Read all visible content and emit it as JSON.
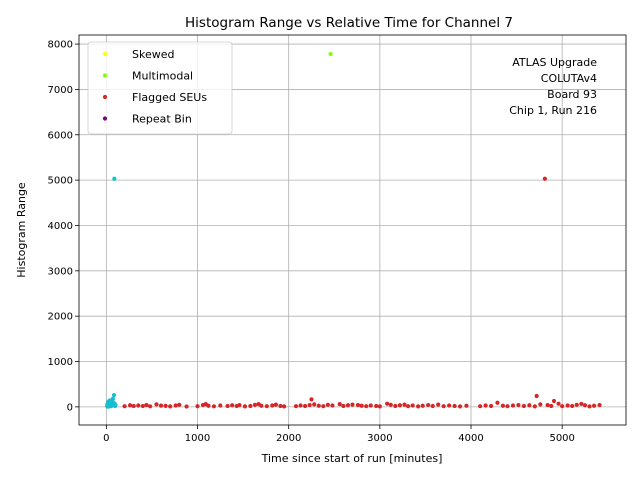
{
  "chart_data": {
    "type": "scatter",
    "title": "Histogram Range vs Relative Time for Channel 7",
    "xlabel": "Time since start of run [minutes]",
    "ylabel": "Histogram Range",
    "xlim": [
      -300,
      5700
    ],
    "ylim": [
      -400,
      8200
    ],
    "xticks": [
      0,
      1000,
      2000,
      3000,
      4000,
      5000
    ],
    "yticks": [
      0,
      1000,
      2000,
      3000,
      4000,
      5000,
      6000,
      7000,
      8000
    ],
    "grid": true,
    "legend_position": "top-left",
    "annotation": [
      "ATLAS Upgrade",
      "COLUTAv4",
      "Board 93",
      "Chip 1, Run 216"
    ],
    "annotation_position": "top-right",
    "series": [
      {
        "name": "Skewed",
        "color": "#ffff00",
        "points": []
      },
      {
        "name": "Multimodal",
        "color": "#7fff00",
        "points": [
          [
            2460,
            7780
          ]
        ]
      },
      {
        "name": "Flagged SEUs",
        "color": "#d62728",
        "points": [
          [
            200,
            15
          ],
          [
            260,
            35
          ],
          [
            300,
            20
          ],
          [
            350,
            30
          ],
          [
            400,
            18
          ],
          [
            440,
            42
          ],
          [
            480,
            12
          ],
          [
            550,
            55
          ],
          [
            600,
            28
          ],
          [
            650,
            22
          ],
          [
            700,
            10
          ],
          [
            760,
            30
          ],
          [
            800,
            45
          ],
          [
            880,
            8
          ],
          [
            1000,
            15
          ],
          [
            1060,
            40
          ],
          [
            1090,
            60
          ],
          [
            1120,
            25
          ],
          [
            1180,
            12
          ],
          [
            1250,
            30
          ],
          [
            1330,
            20
          ],
          [
            1380,
            35
          ],
          [
            1430,
            18
          ],
          [
            1460,
            40
          ],
          [
            1520,
            10
          ],
          [
            1580,
            20
          ],
          [
            1630,
            45
          ],
          [
            1670,
            60
          ],
          [
            1700,
            25
          ],
          [
            1760,
            15
          ],
          [
            1820,
            30
          ],
          [
            1860,
            50
          ],
          [
            1910,
            20
          ],
          [
            1950,
            10
          ],
          [
            2080,
            15
          ],
          [
            2130,
            30
          ],
          [
            2180,
            20
          ],
          [
            2230,
            40
          ],
          [
            2250,
            165
          ],
          [
            2280,
            55
          ],
          [
            2330,
            25
          ],
          [
            2380,
            15
          ],
          [
            2430,
            45
          ],
          [
            2480,
            30
          ],
          [
            2560,
            60
          ],
          [
            2600,
            20
          ],
          [
            2650,
            35
          ],
          [
            2700,
            50
          ],
          [
            2760,
            40
          ],
          [
            2800,
            25
          ],
          [
            2850,
            15
          ],
          [
            2900,
            30
          ],
          [
            2960,
            20
          ],
          [
            3000,
            10
          ],
          [
            3080,
            70
          ],
          [
            3120,
            45
          ],
          [
            3170,
            20
          ],
          [
            3220,
            35
          ],
          [
            3270,
            50
          ],
          [
            3310,
            15
          ],
          [
            3360,
            30
          ],
          [
            3420,
            10
          ],
          [
            3470,
            25
          ],
          [
            3530,
            40
          ],
          [
            3580,
            20
          ],
          [
            3640,
            50
          ],
          [
            3700,
            15
          ],
          [
            3760,
            30
          ],
          [
            3820,
            20
          ],
          [
            3880,
            10
          ],
          [
            3950,
            25
          ],
          [
            4100,
            15
          ],
          [
            4160,
            30
          ],
          [
            4220,
            20
          ],
          [
            4290,
            90
          ],
          [
            4350,
            25
          ],
          [
            4400,
            15
          ],
          [
            4460,
            30
          ],
          [
            4520,
            40
          ],
          [
            4580,
            20
          ],
          [
            4640,
            35
          ],
          [
            4700,
            10
          ],
          [
            4720,
            240
          ],
          [
            4760,
            55
          ],
          [
            4810,
            5030
          ],
          [
            4840,
            40
          ],
          [
            4880,
            20
          ],
          [
            4910,
            130
          ],
          [
            4960,
            70
          ],
          [
            5000,
            15
          ],
          [
            5060,
            30
          ],
          [
            5110,
            20
          ],
          [
            5160,
            45
          ],
          [
            5210,
            65
          ],
          [
            5250,
            35
          ],
          [
            5300,
            10
          ],
          [
            5350,
            25
          ],
          [
            5410,
            40
          ]
        ]
      },
      {
        "name": "Repeat Bin",
        "color": "#800080",
        "points": []
      },
      {
        "name": "",
        "color": "#17becf",
        "points": [
          [
            8,
            20
          ],
          [
            12,
            60
          ],
          [
            16,
            5
          ],
          [
            20,
            110
          ],
          [
            24,
            35
          ],
          [
            28,
            80
          ],
          [
            32,
            10
          ],
          [
            36,
            140
          ],
          [
            40,
            50
          ],
          [
            44,
            25
          ],
          [
            48,
            90
          ],
          [
            52,
            15
          ],
          [
            56,
            70
          ],
          [
            60,
            120
          ],
          [
            64,
            30
          ],
          [
            68,
            55
          ],
          [
            72,
            180
          ],
          [
            76,
            40
          ],
          [
            80,
            95
          ],
          [
            84,
            260
          ],
          [
            88,
            5030
          ],
          [
            92,
            65
          ],
          [
            96,
            20
          ],
          [
            100,
            45
          ]
        ]
      }
    ]
  }
}
